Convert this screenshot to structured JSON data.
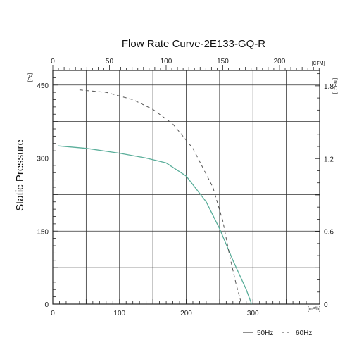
{
  "chart_data": {
    "type": "line",
    "title": "Flow Rate Curve-2E133-GQ-R",
    "ylabel": "Static Pressure",
    "x_unit_bottom": "[m³/h]",
    "x_unit_top": "[CFM]",
    "y_unit_left": "[Pa]",
    "y_unit_right": "[inH₂O]",
    "xlim": [
      0,
      400
    ],
    "ylim": [
      0,
      480
    ],
    "x_ticks_bottom": [
      "0",
      "100",
      "200",
      "300"
    ],
    "x_ticks_top": [
      "0",
      "50",
      "100",
      "150",
      "200"
    ],
    "y_ticks_left": [
      "0",
      "150",
      "300",
      "450"
    ],
    "y_ticks_right": [
      "0",
      "0.6",
      "1.2",
      "1.8"
    ],
    "grid": true,
    "legend_position": "bottom-right",
    "series": [
      {
        "name": "50Hz",
        "color": "#5aae9a",
        "dash": "solid",
        "x": [
          8,
          50,
          100,
          140,
          170,
          200,
          230,
          250,
          270,
          290,
          298
        ],
        "y": [
          325,
          320,
          310,
          300,
          290,
          263,
          210,
          155,
          90,
          30,
          0
        ]
      },
      {
        "name": "60Hz",
        "color": "#555555",
        "dash": "dashed",
        "x": [
          40,
          80,
          120,
          150,
          180,
          210,
          240,
          255,
          265,
          275,
          283
        ],
        "y": [
          440,
          435,
          420,
          400,
          370,
          320,
          240,
          170,
          100,
          40,
          0
        ]
      }
    ]
  }
}
